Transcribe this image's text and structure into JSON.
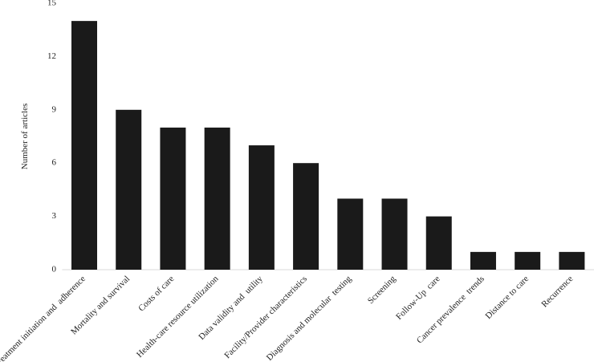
{
  "chart_data": {
    "type": "bar",
    "y_label": "Number of articles",
    "categories": [
      "Treatment initiation and  adherence",
      "Mortality and survival",
      "Costs of care",
      "Health-care resource utilization",
      "Data validity and  utility",
      "Facility/Provider characteristics",
      "Diagnosis and molecular  testing",
      "Screening",
      "Follow-Up  care",
      "Cancer prevalence  trends",
      "Distance to care",
      "Recurrence"
    ],
    "values": [
      14,
      9,
      8,
      8,
      7,
      6,
      4,
      4,
      3,
      1,
      1,
      1
    ],
    "color": "#1a1a1a",
    "ylim": [
      0,
      15
    ],
    "yticks": [
      0,
      3,
      6,
      9,
      12,
      15
    ],
    "grid": false
  }
}
